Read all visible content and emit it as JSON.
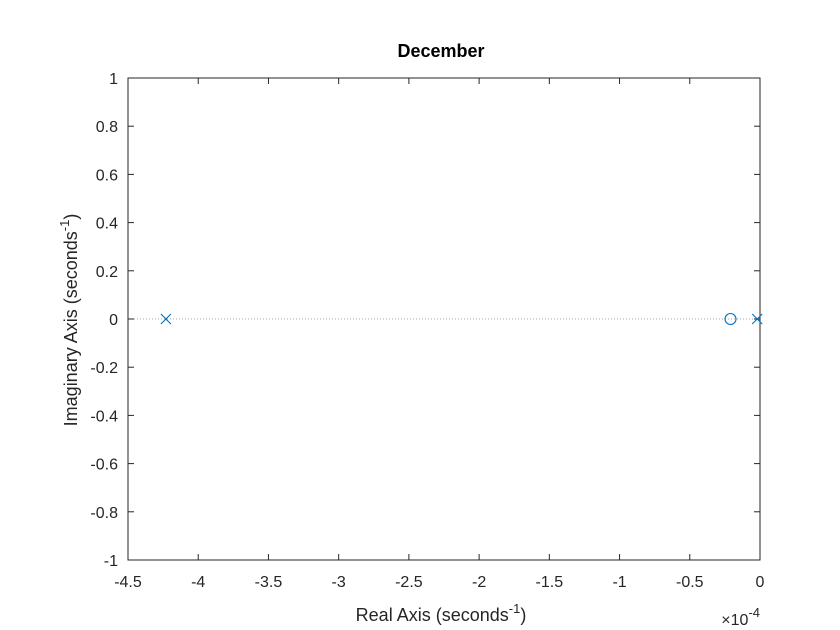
{
  "chart_data": {
    "type": "scatter",
    "title": "December",
    "xlabel": {
      "base": "Real Axis (seconds",
      "sup": "-1",
      "close": ")"
    },
    "ylabel": {
      "base": "Imaginary Axis (seconds",
      "sup": "-1",
      "close": ")"
    },
    "x_multiplier": {
      "prefix": "×10",
      "exp": "-4"
    },
    "xlim": [
      -4.5,
      0
    ],
    "ylim": [
      -1,
      1
    ],
    "xticks": [
      -4.5,
      -4,
      -3.5,
      -3,
      -2.5,
      -2,
      -1.5,
      -1,
      -0.5,
      0
    ],
    "xtick_labels": [
      "-4.5",
      "-4",
      "-3.5",
      "-3",
      "-2.5",
      "-2",
      "-1.5",
      "-1",
      "-0.5",
      "0"
    ],
    "yticks": [
      -1,
      -0.8,
      -0.6,
      -0.4,
      -0.2,
      0,
      0.2,
      0.4,
      0.6,
      0.8,
      1
    ],
    "ytick_labels": [
      "-1",
      "-0.8",
      "-0.6",
      "-0.4",
      "-0.2",
      "0",
      "0.2",
      "0.4",
      "0.6",
      "0.8",
      "1"
    ],
    "grid": false,
    "zero_line": "dotted",
    "poles": [
      {
        "re": -4.23,
        "im": 0
      },
      {
        "re": -0.02,
        "im": 0
      }
    ],
    "zeros": [
      {
        "re": -0.21,
        "im": 0
      }
    ],
    "colors": {
      "marker": "#0072BD",
      "axis": "#262626",
      "zero_line": "#a6a6a6"
    }
  }
}
